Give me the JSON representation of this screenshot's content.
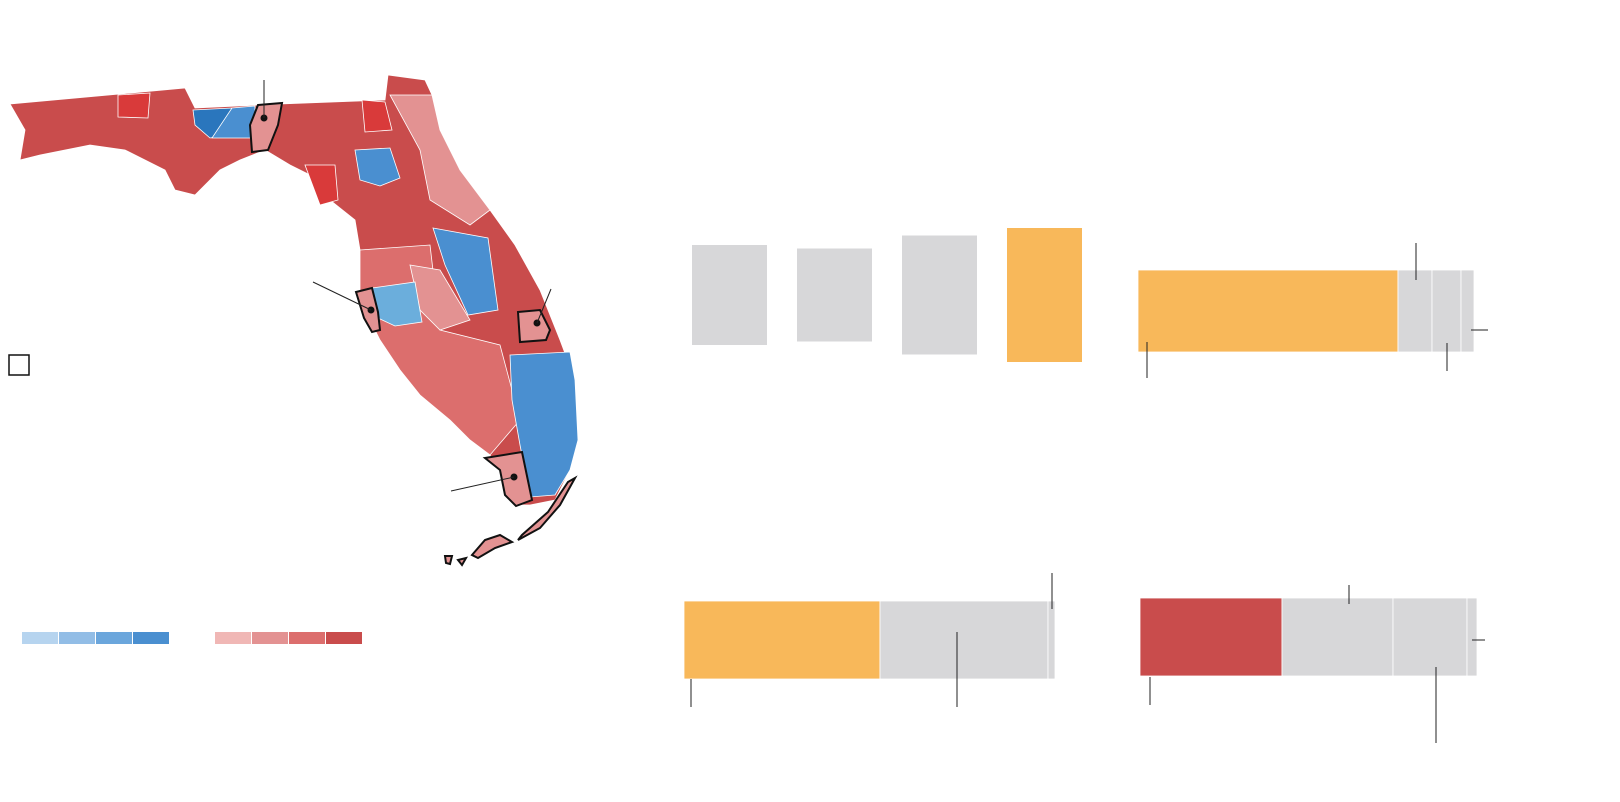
{
  "chart_data": [
    {
      "type": "column",
      "values": [
        100,
        93,
        119,
        134
      ],
      "colors": [
        "#d7d7d9",
        "#d7d7d9",
        "#d7d7d9",
        "#f8b85a"
      ]
    },
    {
      "type": "stacked-bar",
      "values": [
        260,
        34,
        29,
        13
      ],
      "colors": [
        "#f8b85a",
        "#d7d7d9",
        "#d7d7d9",
        "#d7d7d9"
      ]
    },
    {
      "type": "stacked-bar",
      "values": [
        196,
        168,
        7
      ],
      "colors": [
        "#f8b85a",
        "#d7d7d9",
        "#d7d7d9"
      ]
    },
    {
      "type": "stacked-bar",
      "values": [
        142,
        111,
        74,
        10
      ],
      "colors": [
        "#c94c4c",
        "#d7d7d9",
        "#d7d7d9",
        "#d7d7d9"
      ]
    }
  ],
  "legend": {
    "blue": [
      "#b6d4ef",
      "#92bde6",
      "#6ba6dc",
      "#4a8fd0"
    ],
    "red": [
      "#f0b7b5",
      "#e39292",
      "#dc6e6d",
      "#c94c4c"
    ]
  }
}
